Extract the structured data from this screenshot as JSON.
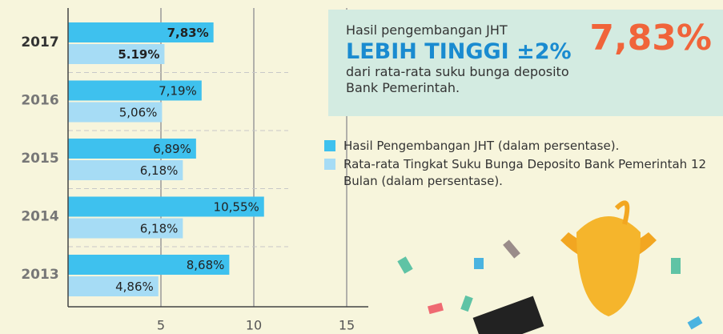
{
  "chart_data": {
    "type": "barh",
    "categories": [
      "2017",
      "2016",
      "2015",
      "2014",
      "2013"
    ],
    "series": [
      {
        "name": "Hasil Pengembangan JHT (dalam persentase).",
        "color": "#3ec1ee",
        "values": [
          7.83,
          7.19,
          6.89,
          10.55,
          8.68
        ],
        "value_labels": [
          "7,83%",
          "7,19%",
          "6,89%",
          "10,55%",
          "8,68%"
        ]
      },
      {
        "name": "Rata-rata Tingkat Suku Bunga Deposito Bank Pemerintah 12 Bulan (dalam persentase).",
        "color": "#a6dcf5",
        "values": [
          5.19,
          5.06,
          6.18,
          6.18,
          4.86
        ],
        "value_labels": [
          "5.19%",
          "5,06%",
          "6,18%",
          "6,18%",
          "4,86%"
        ]
      }
    ],
    "xlim": [
      0,
      15
    ],
    "xticks": [
      5,
      10,
      15
    ],
    "grid": true
  },
  "callout": {
    "intro": "Hasil pengembangan JHT",
    "headline": "LEBIH TINGGI ±2%",
    "detail": "dari rata-rata suku bunga deposito Bank Pemerintah.",
    "value": "7,83%"
  }
}
